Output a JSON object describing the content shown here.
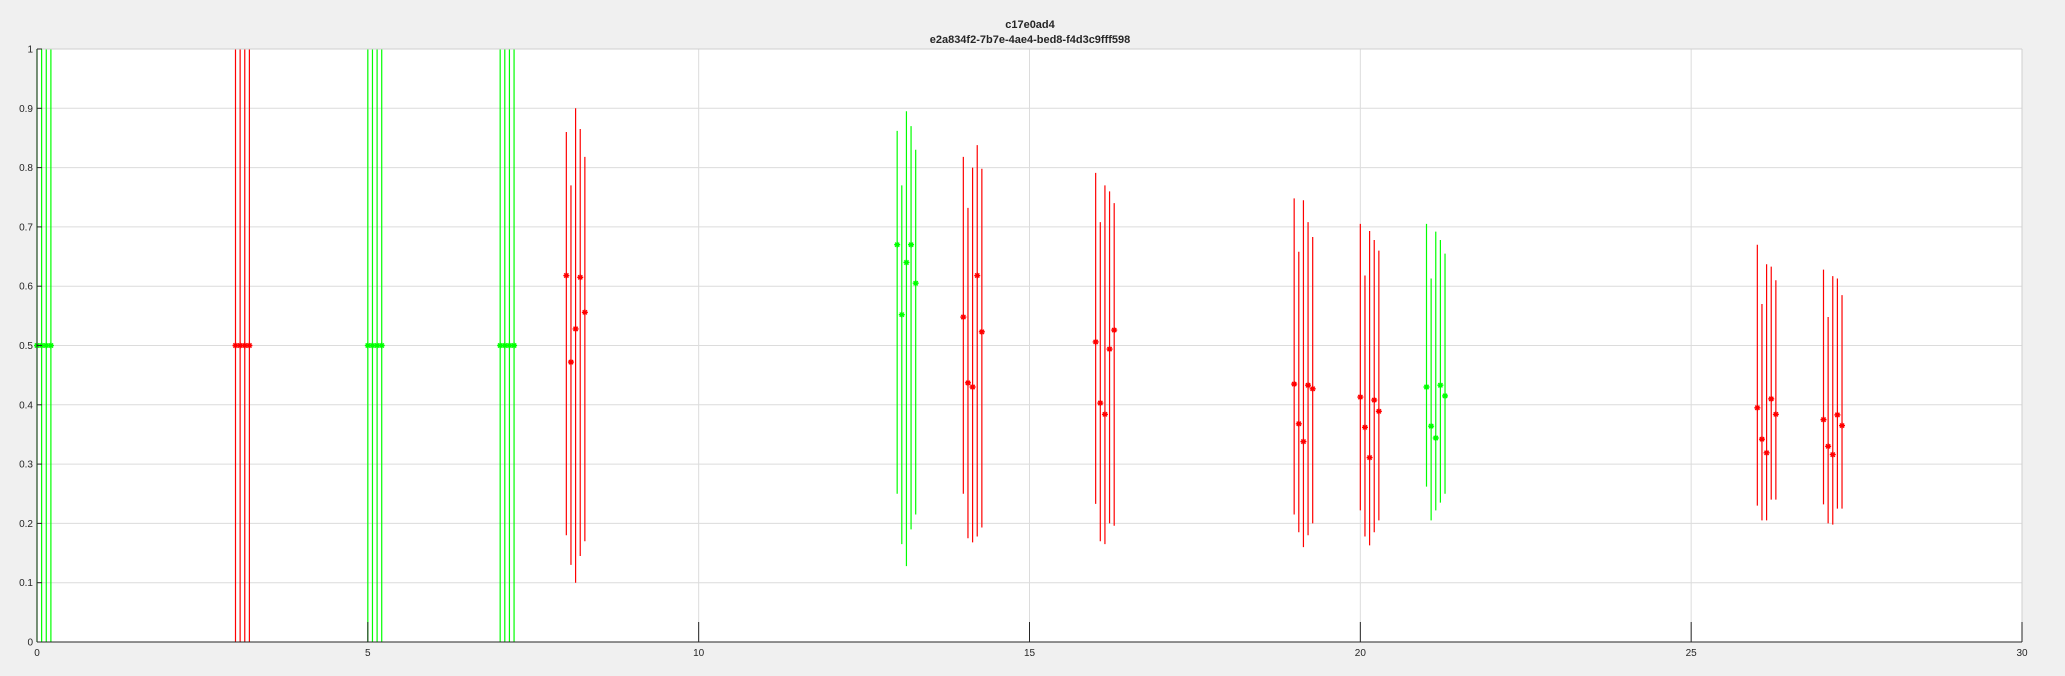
{
  "chart_data": {
    "type": "scatter",
    "title": "c17e0ad4",
    "subtitle": "e2a834f2-7b7e-4ae4-bed8-f4d3c9fff598",
    "xlabel": "",
    "ylabel": "",
    "xlim": [
      0,
      30
    ],
    "ylim": [
      0,
      1
    ],
    "grid": true,
    "colors": {
      "red": "#ff0000",
      "green": "#00ff00"
    },
    "xticks": [
      0,
      5,
      10,
      15,
      20,
      25,
      30
    ],
    "yticks": [
      0,
      0.1,
      0.2,
      0.3,
      0.4,
      0.5,
      0.6,
      0.7,
      0.8,
      0.9,
      1
    ],
    "groups": [
      {
        "color": "green",
        "points": [
          {
            "x": 0.0,
            "y": 0.5,
            "low": 0,
            "high": 1
          },
          {
            "x": 0.07,
            "y": 0.5,
            "low": 0,
            "high": 1
          },
          {
            "x": 0.14,
            "y": 0.5,
            "low": 0,
            "high": 1
          },
          {
            "x": 0.21,
            "y": 0.5,
            "low": 0,
            "high": 1
          }
        ]
      },
      {
        "color": "red",
        "points": [
          {
            "x": 3.0,
            "y": 0.5,
            "low": 0,
            "high": 1
          },
          {
            "x": 3.07,
            "y": 0.5,
            "low": 0,
            "high": 1
          },
          {
            "x": 3.14,
            "y": 0.5,
            "low": 0,
            "high": 1
          },
          {
            "x": 3.21,
            "y": 0.5,
            "low": 0,
            "high": 1
          }
        ]
      },
      {
        "color": "green",
        "points": [
          {
            "x": 5.0,
            "y": 0.5,
            "low": 0,
            "high": 1
          },
          {
            "x": 5.07,
            "y": 0.5,
            "low": 0,
            "high": 1
          },
          {
            "x": 5.14,
            "y": 0.5,
            "low": 0,
            "high": 1
          },
          {
            "x": 5.21,
            "y": 0.5,
            "low": 0,
            "high": 1
          }
        ]
      },
      {
        "color": "green",
        "points": [
          {
            "x": 7.0,
            "y": 0.5,
            "low": 0,
            "high": 1
          },
          {
            "x": 7.07,
            "y": 0.5,
            "low": 0,
            "high": 1
          },
          {
            "x": 7.14,
            "y": 0.5,
            "low": 0,
            "high": 1
          },
          {
            "x": 7.21,
            "y": 0.5,
            "low": 0,
            "high": 1
          }
        ]
      },
      {
        "color": "red",
        "points": [
          {
            "x": 8.0,
            "y": 0.618,
            "low": 0.18,
            "high": 0.86
          },
          {
            "x": 8.07,
            "y": 0.472,
            "low": 0.13,
            "high": 0.77
          },
          {
            "x": 8.14,
            "y": 0.528,
            "low": 0.1,
            "high": 0.9
          },
          {
            "x": 8.21,
            "y": 0.615,
            "low": 0.145,
            "high": 0.865
          },
          {
            "x": 8.28,
            "y": 0.556,
            "low": 0.17,
            "high": 0.818
          }
        ]
      },
      {
        "color": "green",
        "points": [
          {
            "x": 13.0,
            "y": 0.67,
            "low": 0.25,
            "high": 0.862
          },
          {
            "x": 13.07,
            "y": 0.552,
            "low": 0.165,
            "high": 0.77
          },
          {
            "x": 13.14,
            "y": 0.64,
            "low": 0.128,
            "high": 0.895
          },
          {
            "x": 13.21,
            "y": 0.67,
            "low": 0.19,
            "high": 0.87
          },
          {
            "x": 13.28,
            "y": 0.605,
            "low": 0.215,
            "high": 0.83
          }
        ]
      },
      {
        "color": "red",
        "points": [
          {
            "x": 14.0,
            "y": 0.548,
            "low": 0.25,
            "high": 0.818
          },
          {
            "x": 14.07,
            "y": 0.437,
            "low": 0.175,
            "high": 0.732
          },
          {
            "x": 14.14,
            "y": 0.43,
            "low": 0.168,
            "high": 0.8
          },
          {
            "x": 14.21,
            "y": 0.618,
            "low": 0.178,
            "high": 0.838
          },
          {
            "x": 14.28,
            "y": 0.523,
            "low": 0.193,
            "high": 0.798
          }
        ]
      },
      {
        "color": "red",
        "points": [
          {
            "x": 16.0,
            "y": 0.506,
            "low": 0.233,
            "high": 0.791
          },
          {
            "x": 16.07,
            "y": 0.403,
            "low": 0.17,
            "high": 0.708
          },
          {
            "x": 16.14,
            "y": 0.384,
            "low": 0.165,
            "high": 0.77
          },
          {
            "x": 16.21,
            "y": 0.494,
            "low": 0.2,
            "high": 0.76
          },
          {
            "x": 16.28,
            "y": 0.526,
            "low": 0.196,
            "high": 0.74
          }
        ]
      },
      {
        "color": "red",
        "points": [
          {
            "x": 19.0,
            "y": 0.435,
            "low": 0.215,
            "high": 0.748
          },
          {
            "x": 19.07,
            "y": 0.368,
            "low": 0.185,
            "high": 0.658
          },
          {
            "x": 19.14,
            "y": 0.338,
            "low": 0.16,
            "high": 0.745
          },
          {
            "x": 19.21,
            "y": 0.433,
            "low": 0.18,
            "high": 0.708
          },
          {
            "x": 19.28,
            "y": 0.427,
            "low": 0.2,
            "high": 0.683
          }
        ]
      },
      {
        "color": "red",
        "points": [
          {
            "x": 20.0,
            "y": 0.413,
            "low": 0.222,
            "high": 0.705
          },
          {
            "x": 20.07,
            "y": 0.362,
            "low": 0.178,
            "high": 0.618
          },
          {
            "x": 20.14,
            "y": 0.311,
            "low": 0.163,
            "high": 0.693
          },
          {
            "x": 20.21,
            "y": 0.408,
            "low": 0.185,
            "high": 0.678
          },
          {
            "x": 20.28,
            "y": 0.389,
            "low": 0.205,
            "high": 0.66
          }
        ]
      },
      {
        "color": "green",
        "points": [
          {
            "x": 21.0,
            "y": 0.43,
            "low": 0.262,
            "high": 0.705
          },
          {
            "x": 21.07,
            "y": 0.364,
            "low": 0.205,
            "high": 0.613
          },
          {
            "x": 21.14,
            "y": 0.344,
            "low": 0.222,
            "high": 0.692
          },
          {
            "x": 21.21,
            "y": 0.433,
            "low": 0.235,
            "high": 0.678
          },
          {
            "x": 21.28,
            "y": 0.415,
            "low": 0.25,
            "high": 0.655
          }
        ]
      },
      {
        "color": "red",
        "points": [
          {
            "x": 26.0,
            "y": 0.395,
            "low": 0.23,
            "high": 0.67
          },
          {
            "x": 26.07,
            "y": 0.342,
            "low": 0.205,
            "high": 0.57
          },
          {
            "x": 26.14,
            "y": 0.319,
            "low": 0.205,
            "high": 0.637
          },
          {
            "x": 26.21,
            "y": 0.41,
            "low": 0.24,
            "high": 0.633
          },
          {
            "x": 26.28,
            "y": 0.384,
            "low": 0.24,
            "high": 0.61
          }
        ]
      },
      {
        "color": "red",
        "points": [
          {
            "x": 27.0,
            "y": 0.375,
            "low": 0.232,
            "high": 0.628
          },
          {
            "x": 27.07,
            "y": 0.33,
            "low": 0.2,
            "high": 0.548
          },
          {
            "x": 27.14,
            "y": 0.316,
            "low": 0.198,
            "high": 0.617
          },
          {
            "x": 27.21,
            "y": 0.383,
            "low": 0.225,
            "high": 0.613
          },
          {
            "x": 27.28,
            "y": 0.365,
            "low": 0.225,
            "high": 0.585
          }
        ]
      }
    ]
  }
}
